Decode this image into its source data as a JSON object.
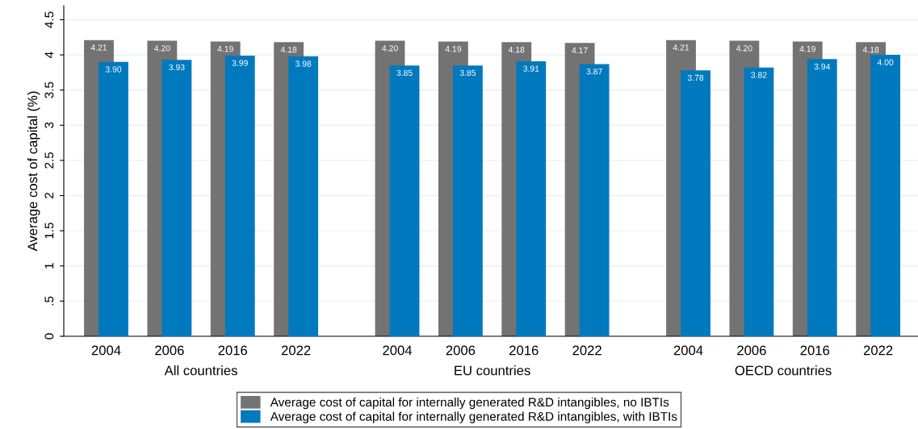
{
  "chart_data": {
    "type": "bar",
    "ylabel": "Average cost of capital (%)",
    "categories": [
      "2004",
      "2006",
      "2016",
      "2022",
      "2004",
      "2006",
      "2016",
      "2022",
      "2004",
      "2006",
      "2016",
      "2022"
    ],
    "series": [
      {
        "name": "Average cost of capital for internally generated R&D intangibles, no IBTIs",
        "color": "#737373",
        "values": [
          4.21,
          4.2,
          4.19,
          4.18,
          4.2,
          4.19,
          4.18,
          4.17,
          4.21,
          4.2,
          4.19,
          4.18
        ],
        "value_labels": [
          "4.21",
          "4.20",
          "4.19",
          "4.18",
          "4.20",
          "4.19",
          "4.18",
          "4.17",
          "4.21",
          "4.20",
          "4.19",
          "4.18"
        ]
      },
      {
        "name": "Average cost of capital for internally generated R&D intangibles, with IBTIs",
        "color": "#0079be",
        "values": [
          3.9,
          3.93,
          3.99,
          3.98,
          3.85,
          3.85,
          3.91,
          3.87,
          3.78,
          3.82,
          3.94,
          4.0
        ],
        "value_labels": [
          "3.90",
          "3.93",
          "3.99",
          "3.98",
          "3.85",
          "3.85",
          "3.91",
          "3.87",
          "3.78",
          "3.82",
          "3.94",
          "4.00"
        ]
      }
    ],
    "annotations": [
      "All countries",
      "EU countries",
      "OECD countries"
    ],
    "ylim": [
      0,
      4.7
    ],
    "yticks": [
      0,
      {
        "value": 0.5,
        "label": ".5"
      },
      1,
      1.5,
      2,
      2.5,
      3,
      3.5,
      4,
      4.5
    ],
    "grid": "y",
    "legend": "bottom"
  }
}
